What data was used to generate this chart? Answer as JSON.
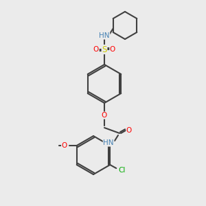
{
  "bg_color": "#ebebeb",
  "bond_color": "#404040",
  "bond_width": 1.5,
  "atom_colors": {
    "N": "#4682b4",
    "O": "#ff0000",
    "S": "#cccc00",
    "Cl": "#00aa00",
    "C": "#404040",
    "H": "#808080"
  },
  "font_size": 7.5
}
